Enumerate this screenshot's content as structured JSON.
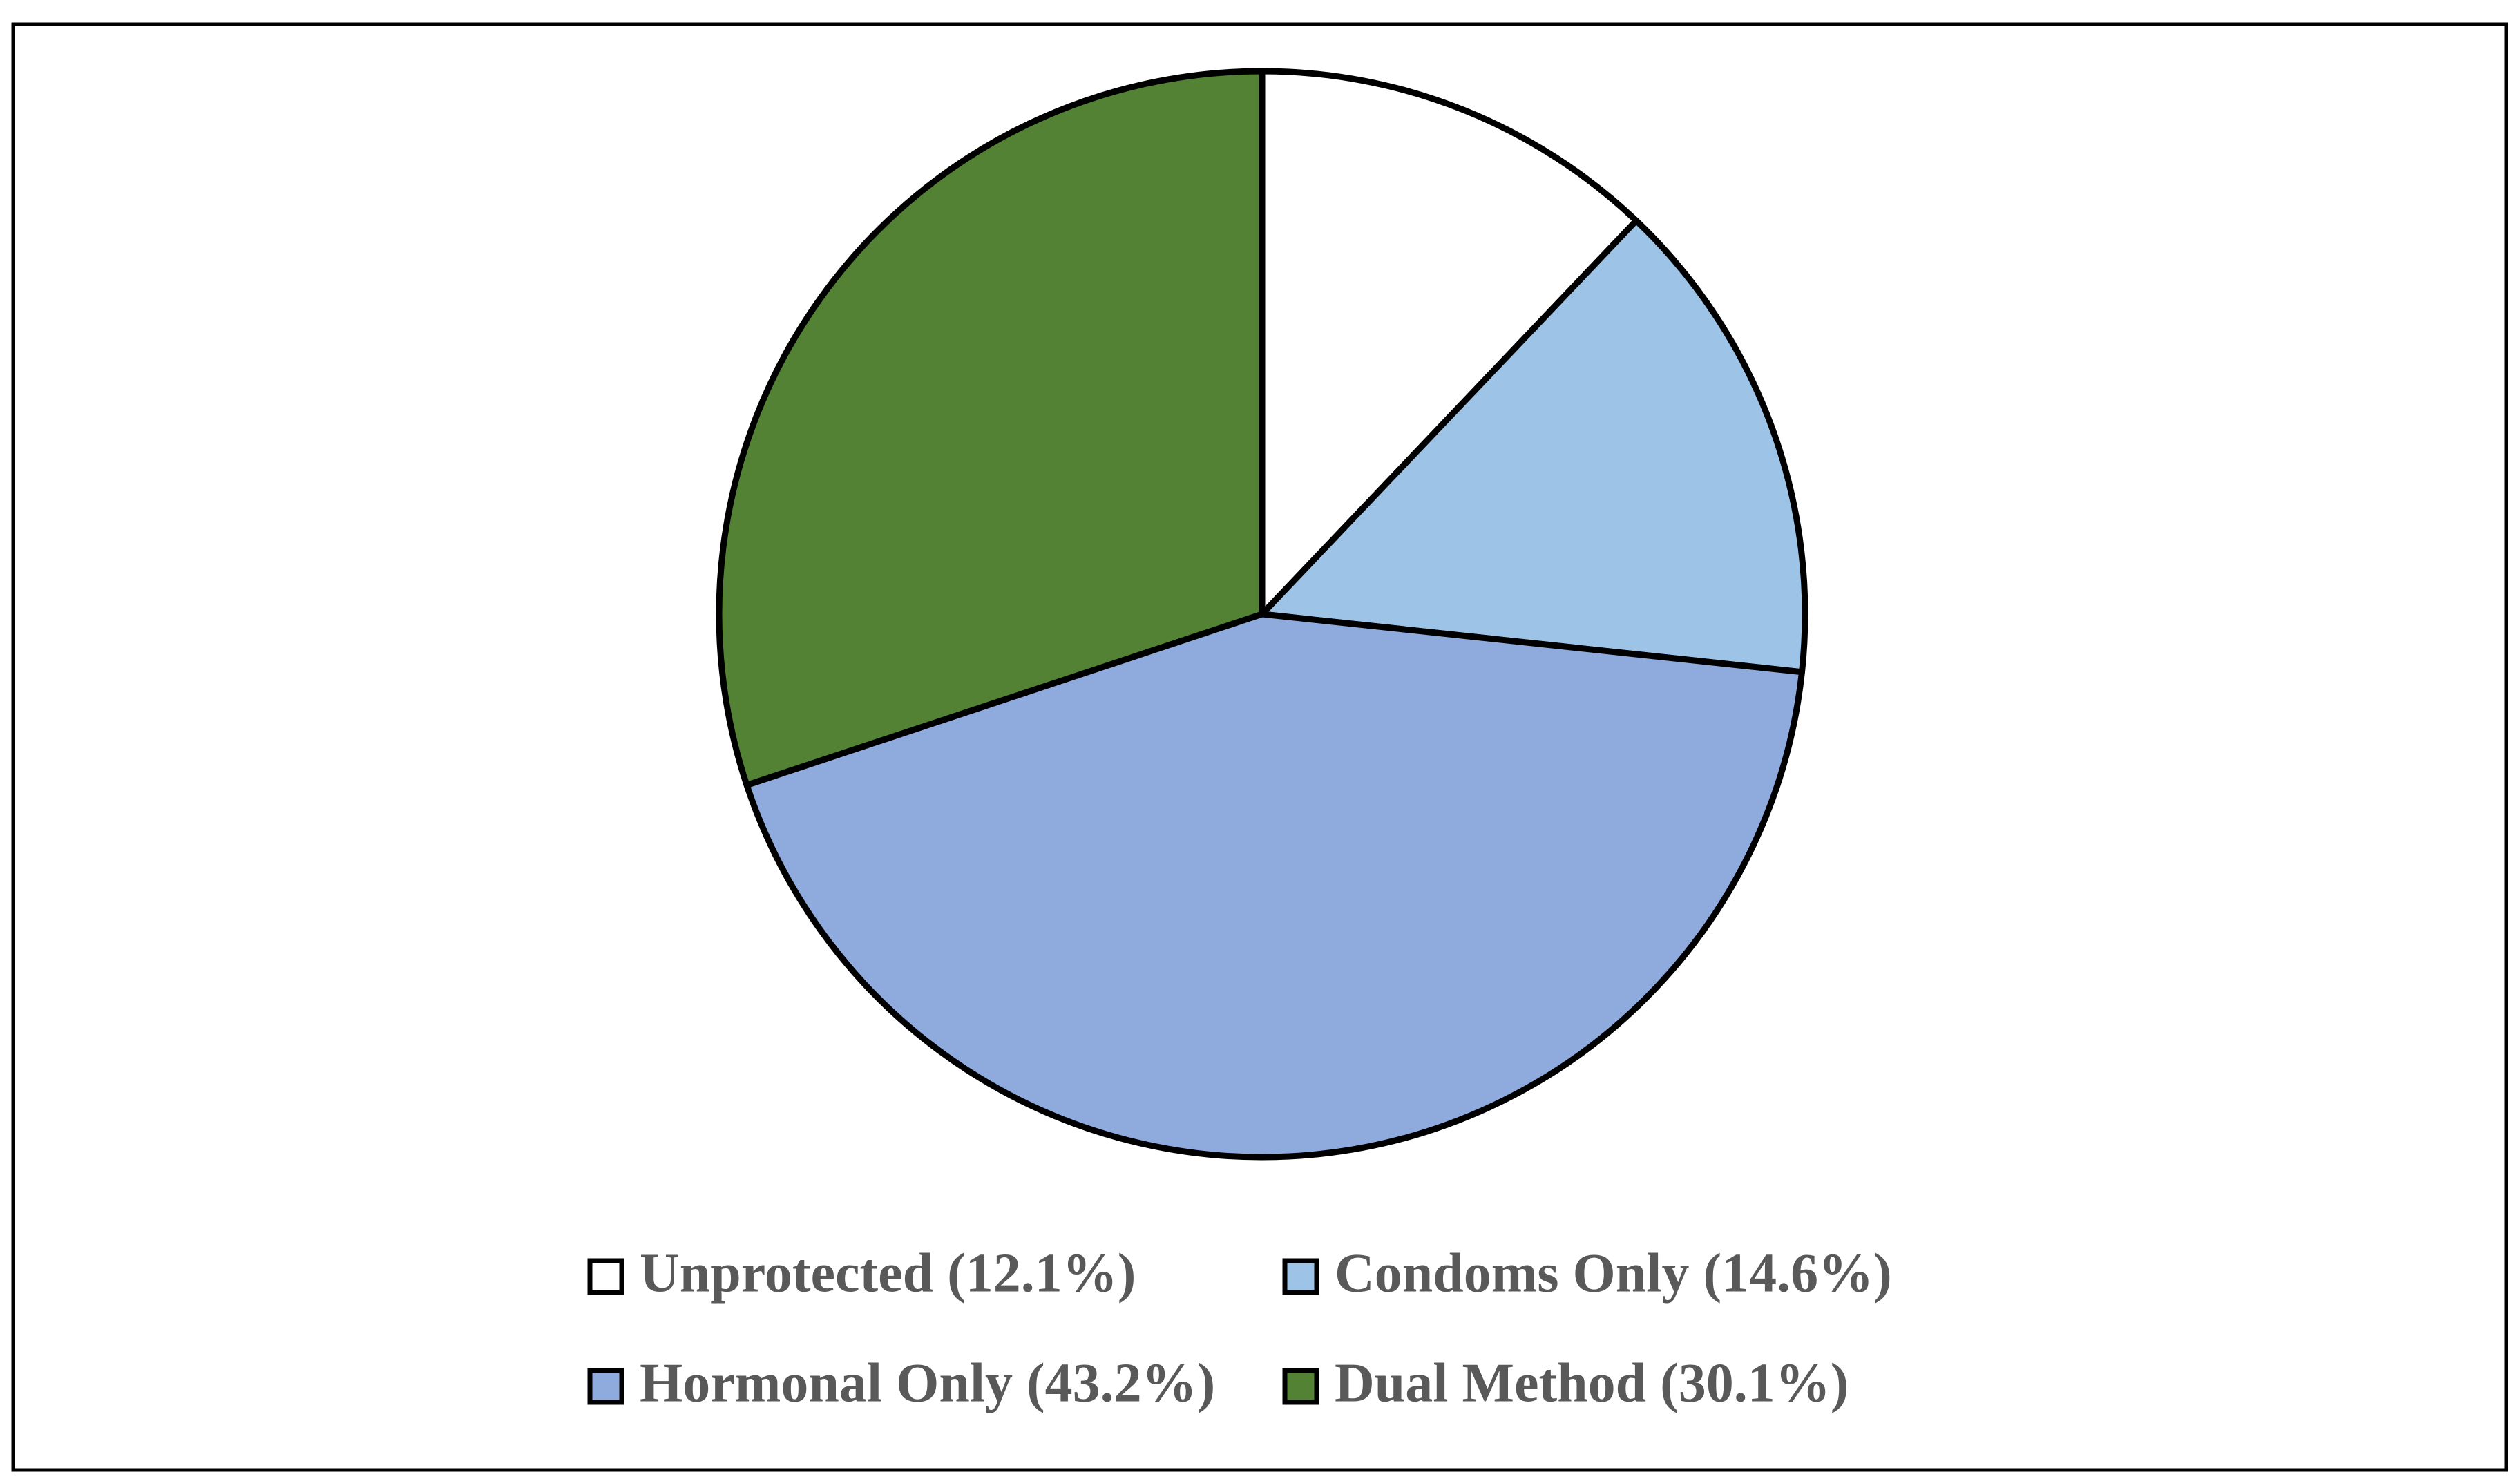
{
  "chart_data": {
    "type": "pie",
    "categories": [
      "Unprotected (12.1%)",
      "Condoms Only (14.6%)",
      "Hormonal Only (43.2%)",
      "Dual Method (30.1%)"
    ],
    "values": [
      12.1,
      14.6,
      43.2,
      30.1
    ],
    "colors": [
      "#ffffff",
      "#9dc3e6",
      "#8faadc",
      "#548235"
    ],
    "legend": "bottom"
  }
}
